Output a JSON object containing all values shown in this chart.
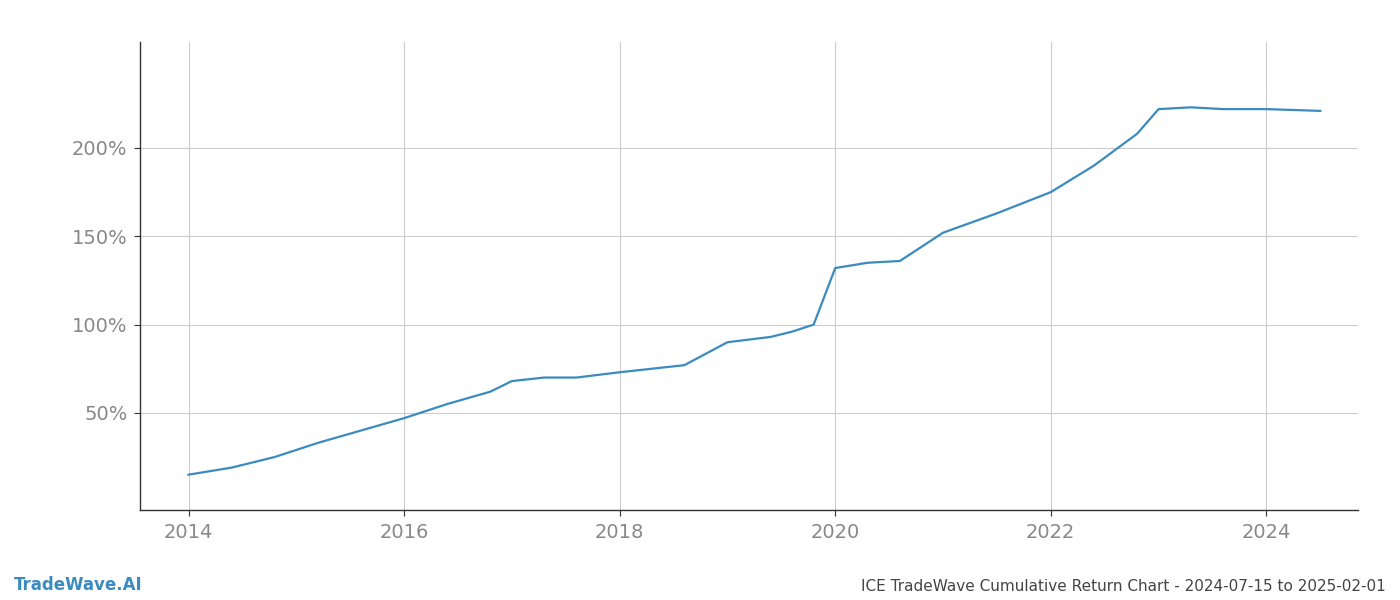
{
  "title": "ICE TradeWave Cumulative Return Chart - 2024-07-15 to 2025-02-01",
  "watermark": "TradeWave.AI",
  "line_color": "#3a8bbf",
  "background_color": "#ffffff",
  "grid_color": "#cccccc",
  "x_years": [
    2014,
    2016,
    2018,
    2020,
    2022,
    2024
  ],
  "data_points": [
    [
      2014.0,
      15
    ],
    [
      2014.4,
      19
    ],
    [
      2014.8,
      25
    ],
    [
      2015.2,
      33
    ],
    [
      2015.6,
      40
    ],
    [
      2016.0,
      47
    ],
    [
      2016.4,
      55
    ],
    [
      2016.8,
      62
    ],
    [
      2017.0,
      68
    ],
    [
      2017.3,
      70
    ],
    [
      2017.6,
      70
    ],
    [
      2018.0,
      73
    ],
    [
      2018.3,
      75
    ],
    [
      2018.6,
      77
    ],
    [
      2019.0,
      90
    ],
    [
      2019.4,
      93
    ],
    [
      2019.6,
      96
    ],
    [
      2019.8,
      100
    ],
    [
      2020.0,
      132
    ],
    [
      2020.3,
      135
    ],
    [
      2020.6,
      136
    ],
    [
      2021.0,
      152
    ],
    [
      2021.5,
      163
    ],
    [
      2022.0,
      175
    ],
    [
      2022.4,
      190
    ],
    [
      2022.8,
      208
    ],
    [
      2023.0,
      222
    ],
    [
      2023.3,
      223
    ],
    [
      2023.6,
      222
    ],
    [
      2024.0,
      222
    ],
    [
      2024.5,
      221
    ]
  ],
  "xlim": [
    2013.55,
    2024.85
  ],
  "ylim": [
    -5,
    260
  ],
  "yticks": [
    50,
    100,
    150,
    200
  ],
  "ytick_labels": [
    "50%",
    "100%",
    "150%",
    "200%"
  ],
  "line_width": 1.6,
  "title_fontsize": 11,
  "watermark_fontsize": 12,
  "tick_fontsize": 14,
  "title_color": "#444444",
  "watermark_color": "#3a8bbf",
  "tick_color": "#888888",
  "spine_color": "#333333"
}
